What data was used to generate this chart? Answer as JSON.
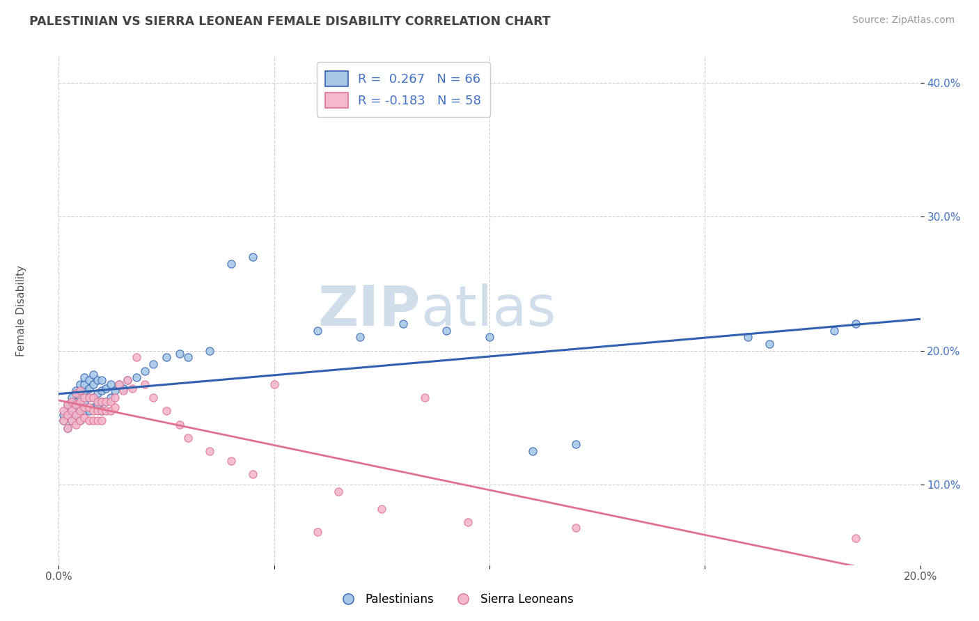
{
  "title": "PALESTINIAN VS SIERRA LEONEAN FEMALE DISABILITY CORRELATION CHART",
  "source": "Source: ZipAtlas.com",
  "xlabel": "",
  "ylabel": "Female Disability",
  "xlim": [
    0.0,
    0.2
  ],
  "ylim": [
    0.04,
    0.42
  ],
  "xticks": [
    0.0,
    0.05,
    0.1,
    0.15,
    0.2
  ],
  "xticklabels": [
    "0.0%",
    "",
    "",
    "",
    "20.0%"
  ],
  "yticks": [
    0.1,
    0.2,
    0.3,
    0.4
  ],
  "yticklabels": [
    "10.0%",
    "20.0%",
    "30.0%",
    "40.0%"
  ],
  "R_palestinian": 0.267,
  "N_palestinian": 66,
  "R_sierra": -0.183,
  "N_sierra": 58,
  "color_palestinian": "#a8c8e8",
  "color_sierra": "#f4b8cc",
  "line_color_palestinian": "#3060b0",
  "line_color_sierra": "#e07090",
  "background_color": "#ffffff",
  "watermark_zip": "ZIP",
  "watermark_atlas": "atlas",
  "legend_label_palestinian": "Palestinians",
  "legend_label_sierra": "Sierra Leoneans",
  "palestinian_x": [
    0.001,
    0.001,
    0.002,
    0.002,
    0.002,
    0.003,
    0.003,
    0.003,
    0.003,
    0.004,
    0.004,
    0.004,
    0.004,
    0.005,
    0.005,
    0.005,
    0.005,
    0.005,
    0.006,
    0.006,
    0.006,
    0.006,
    0.006,
    0.007,
    0.007,
    0.007,
    0.007,
    0.008,
    0.008,
    0.008,
    0.008,
    0.009,
    0.009,
    0.009,
    0.01,
    0.01,
    0.01,
    0.01,
    0.011,
    0.011,
    0.012,
    0.012,
    0.013,
    0.014,
    0.015,
    0.016,
    0.018,
    0.02,
    0.022,
    0.025,
    0.028,
    0.03,
    0.035,
    0.04,
    0.045,
    0.06,
    0.07,
    0.08,
    0.09,
    0.1,
    0.11,
    0.12,
    0.16,
    0.165,
    0.18,
    0.185
  ],
  "palestinian_y": [
    0.148,
    0.152,
    0.155,
    0.142,
    0.16,
    0.148,
    0.158,
    0.152,
    0.165,
    0.148,
    0.155,
    0.162,
    0.17,
    0.148,
    0.158,
    0.165,
    0.175,
    0.16,
    0.155,
    0.162,
    0.17,
    0.175,
    0.18,
    0.155,
    0.165,
    0.172,
    0.178,
    0.158,
    0.165,
    0.175,
    0.182,
    0.16,
    0.168,
    0.178,
    0.155,
    0.162,
    0.17,
    0.178,
    0.162,
    0.172,
    0.165,
    0.175,
    0.17,
    0.175,
    0.172,
    0.178,
    0.18,
    0.185,
    0.19,
    0.195,
    0.198,
    0.195,
    0.2,
    0.265,
    0.27,
    0.215,
    0.21,
    0.22,
    0.215,
    0.21,
    0.125,
    0.13,
    0.21,
    0.205,
    0.215,
    0.22
  ],
  "sierra_x": [
    0.001,
    0.001,
    0.002,
    0.002,
    0.002,
    0.003,
    0.003,
    0.003,
    0.004,
    0.004,
    0.004,
    0.004,
    0.005,
    0.005,
    0.005,
    0.005,
    0.006,
    0.006,
    0.006,
    0.007,
    0.007,
    0.007,
    0.008,
    0.008,
    0.008,
    0.009,
    0.009,
    0.009,
    0.01,
    0.01,
    0.01,
    0.011,
    0.011,
    0.012,
    0.012,
    0.013,
    0.013,
    0.014,
    0.015,
    0.016,
    0.017,
    0.018,
    0.02,
    0.022,
    0.025,
    0.028,
    0.03,
    0.035,
    0.04,
    0.045,
    0.05,
    0.06,
    0.065,
    0.075,
    0.085,
    0.095,
    0.12,
    0.185
  ],
  "sierra_y": [
    0.148,
    0.155,
    0.142,
    0.152,
    0.16,
    0.148,
    0.155,
    0.162,
    0.145,
    0.152,
    0.16,
    0.168,
    0.148,
    0.155,
    0.162,
    0.17,
    0.15,
    0.158,
    0.165,
    0.148,
    0.158,
    0.165,
    0.148,
    0.155,
    0.165,
    0.148,
    0.155,
    0.162,
    0.148,
    0.155,
    0.162,
    0.155,
    0.162,
    0.155,
    0.162,
    0.158,
    0.165,
    0.175,
    0.17,
    0.178,
    0.172,
    0.195,
    0.175,
    0.165,
    0.155,
    0.145,
    0.135,
    0.125,
    0.118,
    0.108,
    0.175,
    0.065,
    0.095,
    0.082,
    0.165,
    0.072,
    0.068,
    0.06
  ]
}
